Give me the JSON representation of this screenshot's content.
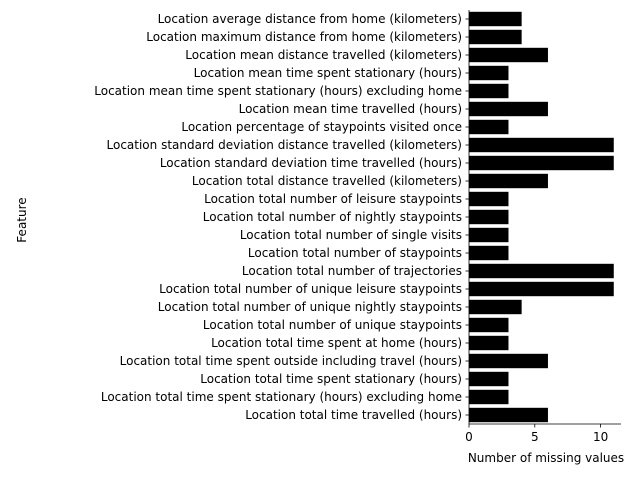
{
  "chart_data": {
    "type": "bar",
    "orientation": "horizontal",
    "title": "",
    "xlabel": "Number of missing values",
    "ylabel": "Feature",
    "xlim": [
      0,
      11.55
    ],
    "xticks": [
      0,
      5,
      10
    ],
    "grid": false,
    "bar_color": "#000000",
    "categories": [
      "Location average distance from home (kilometers)",
      "Location maximum distance from home (kilometers)",
      "Location mean distance travelled (kilometers)",
      "Location mean time spent stationary (hours)",
      "Location mean time spent stationary (hours) excluding home",
      "Location mean time travelled (hours)",
      "Location percentage of staypoints visited once",
      "Location standard deviation distance travelled (kilometers)",
      "Location standard deviation time travelled (hours)",
      "Location total distance travelled (kilometers)",
      "Location total number of leisure staypoints",
      "Location total number of nightly staypoints",
      "Location total number of single visits",
      "Location total number of staypoints",
      "Location total number of trajectories",
      "Location total number of unique leisure staypoints",
      "Location total number of unique nightly staypoints",
      "Location total number of unique staypoints",
      "Location total time spent at home (hours)",
      "Location total time spent outside including travel (hours)",
      "Location total time spent stationary (hours)",
      "Location total time spent stationary (hours) excluding home",
      "Location total time travelled (hours)"
    ],
    "values": [
      4,
      4,
      6,
      3,
      3,
      6,
      3,
      11,
      11,
      6,
      3,
      3,
      3,
      3,
      11,
      11,
      4,
      3,
      3,
      6,
      3,
      3,
      6
    ]
  }
}
